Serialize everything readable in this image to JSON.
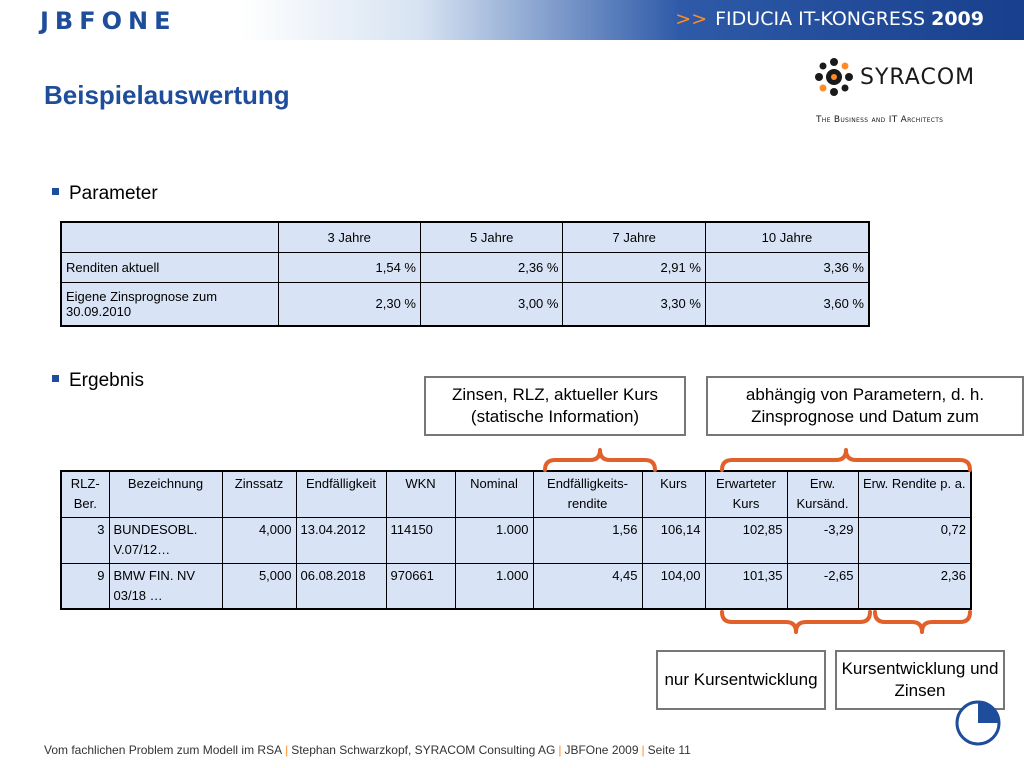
{
  "header": {
    "logo_text": "JBFONE",
    "congress_arrows": ">>",
    "congress_name": "FIDUCIA IT-KONGRESS",
    "congress_year": "2009",
    "brand_color": "#1e4d9b",
    "accent_color": "#ff8c2a"
  },
  "title": "Beispielauswertung",
  "syracom": {
    "name": "SYRACOM",
    "tagline": "The Business and IT Architects",
    "icon": "syracom-logo-mark"
  },
  "parameter_section": {
    "bullet": "Parameter",
    "columns": [
      "",
      "3 Jahre",
      "5 Jahre",
      "7 Jahre",
      "10 Jahre"
    ],
    "rows": [
      {
        "label": "Renditen aktuell",
        "values": [
          "1,54 %",
          "2,36 %",
          "2,91 %",
          "3,36 %"
        ]
      },
      {
        "label": "Eigene Zinsprognose zum 30.09.2010",
        "values": [
          "2,30 %",
          "3,00 %",
          "3,30 %",
          "3,60 %"
        ]
      }
    ]
  },
  "result_section": {
    "bullet": "Ergebnis",
    "columns": [
      "RLZ-Ber.",
      "Bezeichnung",
      "Zinssatz",
      "Endfälligkeit",
      "WKN",
      "Nominal",
      "Endfälligkeits-rendite",
      "Kurs",
      "Erwarteter Kurs",
      "Erw. Kursänd.",
      "Erw. Rendite p. a."
    ],
    "rows": [
      [
        "3",
        "BUNDESOBL. V.07/12…",
        "4,000",
        "13.04.2012",
        "114150",
        "1.000",
        "1,56",
        "106,14",
        "102,85",
        "-3,29",
        "0,72"
      ],
      [
        "9",
        "BMW FIN. NV 03/18 …",
        "5,000",
        "06.08.2018",
        "970661",
        "1.000",
        "4,45",
        "104,00",
        "101,35",
        "-2,65",
        "2,36"
      ]
    ]
  },
  "callouts": {
    "static_info": "Zinsen, RLZ, aktueller Kurs (statische Information)",
    "param_dependent": "abhängig von Parametern, d. h. Zinsprognose und Datum zum",
    "only_price": "nur Kursentwicklung",
    "price_and_interest": "Kursentwicklung und Zinsen"
  },
  "footer": {
    "part1": "Vom fachlichen Problem zum Modell im RSA",
    "separator": "|",
    "part2": "Stephan Schwarzkopf, SYRACOM Consulting AG",
    "part3": "JBFOne 2009",
    "part4": "Seite 11"
  },
  "icons": {
    "pie": "pie-chart-icon",
    "bullet": "square-bullet-icon"
  }
}
